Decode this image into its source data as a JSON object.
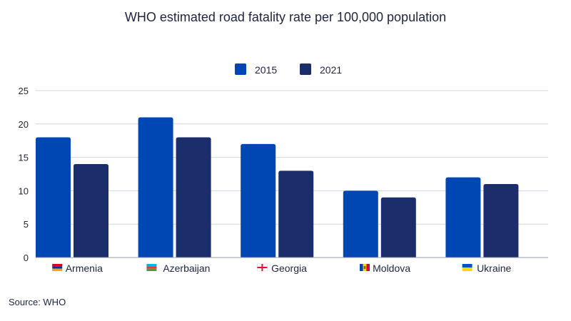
{
  "chart_data": {
    "type": "bar",
    "title": "WHO estimated road fatality rate per 100,000 population",
    "xlabel": "",
    "ylabel": "",
    "categories": [
      "Armenia",
      "Azerbaijan",
      "Georgia",
      "Moldova",
      "Ukraine"
    ],
    "category_flags": [
      "armenia-flag-icon",
      "azerbaijan-flag-icon",
      "georgia-flag-icon",
      "moldova-flag-icon",
      "ukraine-flag-icon"
    ],
    "series": [
      {
        "name": "2015",
        "values": [
          18,
          21,
          17,
          10,
          12
        ],
        "color": "#0047b3"
      },
      {
        "name": "2021",
        "values": [
          14,
          18,
          13,
          9,
          11
        ],
        "color": "#1b2d6b"
      }
    ],
    "ylim": [
      0,
      25
    ],
    "yticks": [
      0,
      5,
      10,
      15,
      20,
      25
    ],
    "grid": true,
    "legend_position": "top-center"
  },
  "source": "Source: WHO"
}
